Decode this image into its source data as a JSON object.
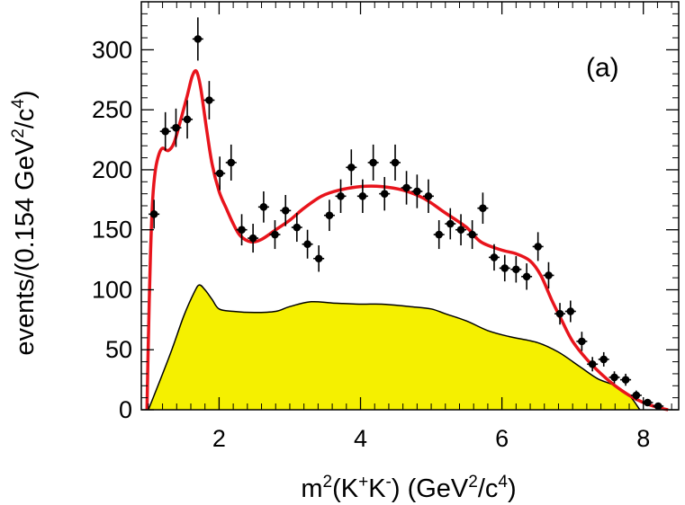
{
  "chart_data": {
    "type": "scatter",
    "panel_label": "(a)",
    "xlabel": "m²(K⁺K⁻) (GeV²/c⁴)",
    "xlabel_parts": {
      "base": "m",
      "sq": "2",
      "open": "(K",
      "plus": "+",
      "k": "K",
      "minus": "-",
      "close": ")  (GeV",
      "sq2": "2",
      "mid": "/c",
      "four": "4",
      "end": ")"
    },
    "ylabel": "events/(0.154 GeV²/c⁴)",
    "ylabel_parts": {
      "main": "events/(0.154 GeV",
      "sq": "2",
      "mid": "/c",
      "four": "4",
      "end": ")"
    },
    "xlim": [
      0.9,
      8.5
    ],
    "ylim": [
      0,
      340
    ],
    "xticks": [
      2,
      4,
      6,
      8
    ],
    "yticks": [
      0,
      50,
      100,
      150,
      200,
      250,
      300
    ],
    "xtick_labels": [
      "2",
      "4",
      "6",
      "8"
    ],
    "ytick_labels": [
      "0",
      "50",
      "100",
      "150",
      "200",
      "250",
      "300"
    ],
    "grid": false,
    "colors": {
      "fit": "#e8141c",
      "background_fill": "#f5f000",
      "background_line": "#000000",
      "points": "#000000"
    },
    "series": [
      {
        "name": "data",
        "kind": "points",
        "x": [
          1.08,
          1.24,
          1.39,
          1.55,
          1.7,
          1.86,
          2.01,
          2.17,
          2.32,
          2.48,
          2.63,
          2.79,
          2.94,
          3.1,
          3.25,
          3.41,
          3.56,
          3.72,
          3.87,
          4.03,
          4.18,
          4.34,
          4.49,
          4.65,
          4.8,
          4.96,
          5.11,
          5.27,
          5.42,
          5.58,
          5.73,
          5.89,
          6.04,
          6.2,
          6.35,
          6.51,
          6.66,
          6.82,
          6.97,
          7.13,
          7.28,
          7.44,
          7.59,
          7.75,
          7.9,
          8.06,
          8.21
        ],
        "y": [
          163,
          232,
          235,
          242,
          309,
          258,
          197,
          206,
          150,
          143,
          169,
          146,
          166,
          152,
          138,
          126,
          162,
          178,
          202,
          178,
          206,
          180,
          206,
          185,
          182,
          178,
          146,
          155,
          150,
          146,
          168,
          127,
          118,
          117,
          111,
          136,
          112,
          80,
          82,
          57,
          38,
          42,
          27,
          25,
          12,
          6,
          3
        ],
        "yerr": [
          12,
          16,
          16,
          16,
          18,
          16,
          14,
          15,
          13,
          12,
          13,
          12,
          13,
          12,
          12,
          11,
          13,
          14,
          15,
          14,
          15,
          14,
          15,
          14,
          14,
          14,
          12,
          13,
          13,
          12,
          13,
          11,
          11,
          11,
          11,
          12,
          11,
          9,
          9,
          8,
          6,
          6,
          5,
          5,
          4,
          3,
          2
        ]
      },
      {
        "name": "total fit",
        "kind": "line",
        "x": [
          0.98,
          1.0,
          1.03,
          1.06,
          1.1,
          1.15,
          1.2,
          1.28,
          1.36,
          1.45,
          1.55,
          1.62,
          1.68,
          1.74,
          1.82,
          1.9,
          2.0,
          2.1,
          2.2,
          2.3,
          2.45,
          2.6,
          2.8,
          3.0,
          3.2,
          3.45,
          3.7,
          4.0,
          4.3,
          4.6,
          4.9,
          5.2,
          5.5,
          5.7,
          6.0,
          6.2,
          6.4,
          6.55,
          6.7,
          6.85,
          7.0,
          7.2,
          7.4,
          7.6,
          7.8,
          8.0,
          8.2,
          8.35
        ],
        "y": [
          0,
          60,
          130,
          175,
          200,
          213,
          218,
          216,
          222,
          240,
          262,
          278,
          282,
          268,
          235,
          205,
          182,
          168,
          155,
          145,
          140,
          142,
          150,
          158,
          168,
          178,
          183,
          186,
          186,
          183,
          176,
          164,
          152,
          140,
          133,
          130,
          124,
          112,
          92,
          74,
          57,
          42,
          30,
          20,
          12,
          6,
          2,
          0
        ]
      },
      {
        "name": "background",
        "kind": "area",
        "x": [
          1.0,
          1.3,
          1.5,
          1.65,
          1.72,
          1.8,
          1.9,
          2.0,
          2.2,
          2.5,
          2.8,
          3.0,
          3.3,
          3.6,
          4.0,
          4.3,
          4.7,
          5.0,
          5.2,
          5.5,
          5.8,
          6.1,
          6.5,
          6.8,
          7.1,
          7.35,
          7.6,
          7.8,
          7.95
        ],
        "y": [
          0,
          45,
          78,
          98,
          104,
          100,
          92,
          84,
          82,
          81,
          82,
          86,
          90,
          89,
          88,
          88,
          86,
          84,
          80,
          74,
          66,
          61,
          56,
          48,
          36,
          26,
          20,
          12,
          0
        ]
      }
    ]
  }
}
